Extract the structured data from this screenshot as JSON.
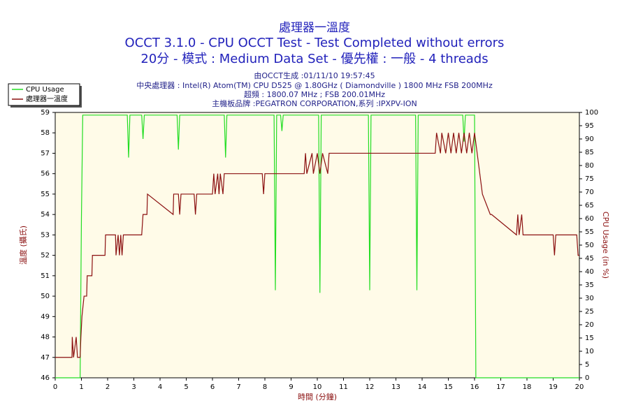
{
  "chart_data": {
    "type": "line",
    "title": "處理器一溫度",
    "subtitles": [
      "OCCT 3.1.0 - CPU OCCT Test - Test Completed without errors",
      "20分 - 模式 : Medium Data Set - 優先權 : 一般 - 4 threads"
    ],
    "info_lines": [
      "由OCCT生成 :01/11/10 19:57:45",
      "中央處理器 : Intel(R) Atom(TM) CPU D525 @ 1.80GHz ( Diamondville ) 1800 MHz FSB 200MHz",
      "超頻 : 1800.07 MHz ; FSB 200.01MHz",
      "主機板品牌 :PEGATRON CORPORATION,系列 :IPXPV-ION"
    ],
    "x_label": "時間 (分鐘)",
    "y_label": "溫度 (攝氏)",
    "y2_label": "CPU Usage (in %)",
    "xlim": [
      0,
      20
    ],
    "xticks": [
      0,
      1,
      2,
      3,
      4,
      5,
      6,
      7,
      8,
      9,
      10,
      11,
      12,
      13,
      14,
      15,
      16,
      17,
      18,
      19,
      20
    ],
    "ylim": [
      46,
      59
    ],
    "yticks": [
      46,
      47,
      48,
      49,
      50,
      51,
      52,
      53,
      54,
      55,
      56,
      57,
      58,
      59
    ],
    "y2lim": [
      0,
      100
    ],
    "y2ticks": [
      0,
      5,
      10,
      15,
      20,
      25,
      30,
      35,
      40,
      45,
      50,
      55,
      60,
      65,
      70,
      75,
      80,
      85,
      90,
      95,
      100
    ],
    "legend": "top-left",
    "series": [
      {
        "name": "CPU Usage",
        "color": "#22dd22",
        "axis": "y2",
        "x": [
          0,
          0.95,
          1.0,
          1.05,
          2.75,
          2.8,
          2.85,
          3.3,
          3.35,
          3.4,
          4.65,
          4.7,
          4.75,
          6.45,
          6.5,
          6.55,
          8.35,
          8.4,
          8.45,
          8.6,
          8.65,
          8.7,
          10.05,
          10.1,
          10.15,
          11.95,
          12.0,
          12.05,
          13.75,
          13.8,
          13.85,
          15.55,
          15.6,
          15.65,
          16.0,
          16.05,
          20
        ],
        "values": [
          0,
          0,
          60,
          99,
          99,
          83,
          99,
          99,
          90,
          99,
          99,
          86,
          99,
          99,
          83,
          99,
          99,
          33,
          99,
          99,
          93,
          99,
          99,
          32,
          99,
          99,
          33,
          99,
          99,
          33,
          99,
          99,
          89,
          99,
          99,
          0,
          0
        ]
      },
      {
        "name": "處理器一溫度",
        "color": "#8b1010",
        "axis": "y",
        "x": [
          0,
          0.64,
          0.65,
          0.7,
          0.8,
          0.85,
          0.95,
          0.98,
          1.02,
          1.1,
          1.2,
          1.22,
          1.4,
          1.42,
          1.9,
          1.92,
          2.3,
          2.32,
          2.4,
          2.45,
          2.5,
          2.55,
          2.6,
          3.3,
          3.35,
          3.5,
          3.52,
          4.5,
          4.52,
          4.7,
          4.75,
          4.8,
          5.3,
          5.35,
          5.4,
          6.0,
          6.05,
          6.1,
          6.2,
          6.25,
          6.3,
          6.4,
          6.45,
          7.9,
          7.95,
          8.0,
          9.5,
          9.55,
          9.6,
          9.8,
          9.85,
          10.0,
          10.1,
          10.2,
          10.4,
          10.45,
          14.5,
          14.55,
          14.7,
          14.75,
          14.9,
          15.0,
          15.1,
          15.2,
          15.3,
          15.4,
          15.5,
          15.6,
          15.7,
          15.8,
          15.9,
          16.0,
          16.1,
          16.2,
          16.3,
          16.6,
          16.65,
          17.6,
          17.65,
          17.7,
          17.8,
          17.85,
          18.0,
          19.0,
          19.05,
          19.1,
          19.9,
          19.95,
          20
        ],
        "values": [
          47,
          47,
          48,
          47,
          48,
          47,
          47,
          48,
          49,
          50,
          50,
          51,
          51,
          52,
          52,
          53,
          53,
          52,
          53,
          52,
          53,
          52,
          53,
          53,
          54,
          54,
          55,
          54,
          55,
          55,
          54,
          55,
          55,
          54,
          55,
          55,
          56,
          55,
          56,
          55,
          56,
          55,
          56,
          56,
          55,
          56,
          56,
          57,
          56,
          57,
          56,
          57,
          56,
          57,
          56,
          57,
          57,
          58,
          57,
          58,
          57,
          58,
          57,
          58,
          57,
          58,
          57,
          58,
          57,
          58,
          57,
          58,
          57,
          56,
          55,
          54,
          54,
          53,
          54,
          53,
          54,
          53,
          53,
          53,
          52,
          53,
          53,
          52,
          52
        ]
      }
    ]
  }
}
